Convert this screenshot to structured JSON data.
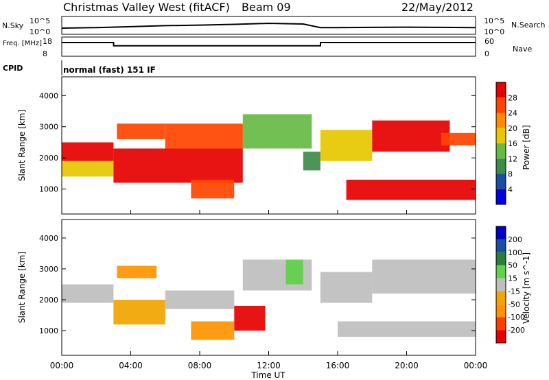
{
  "header": {
    "title": "Christmas Valley West (fitACF)",
    "beam": "Beam 09",
    "date": "22/May/2012",
    "cpid_label": "CPID",
    "cpid_value": "normal (fast) 151 IF"
  },
  "chart_data": [
    {
      "type": "line",
      "panel": "noise",
      "left_label": "N.Sky",
      "right_label": "N.Search",
      "left_ticks": [
        "10^5",
        "10^0"
      ],
      "right_ticks": [
        "10^5",
        "10^0"
      ],
      "yscale": "log",
      "ylim": [
        1,
        100000
      ],
      "x": [
        0,
        2,
        4,
        6,
        8,
        10,
        12,
        14,
        15,
        16,
        18,
        20,
        22,
        24
      ],
      "series": [
        {
          "name": "N.Sky",
          "values": [
            40,
            60,
            120,
            250,
            400,
            700,
            1500,
            900,
            60,
            60,
            70,
            80,
            70,
            60
          ]
        }
      ]
    },
    {
      "type": "line",
      "panel": "frequency",
      "left_label": "Freq. [MHz]",
      "right_label": "Nave",
      "left_ticks": [
        "18",
        "8"
      ],
      "right_ticks": [
        "60",
        "0"
      ],
      "ylim": [
        8,
        18
      ],
      "x": [
        0,
        3,
        3.01,
        15,
        15.01,
        24
      ],
      "series": [
        {
          "name": "Freq.",
          "values": [
            15.5,
            15.5,
            13.5,
            13.5,
            15.5,
            15.5
          ]
        }
      ]
    },
    {
      "type": "heatmap",
      "panel": "power",
      "ylabel": "Slant Range [km]",
      "yticks": [
        "4000",
        "3000",
        "2000",
        "1000"
      ],
      "ylim": [
        200,
        4600
      ],
      "colorbar_label": "Power [dB]",
      "colorbar_ticks": [
        "28",
        "24",
        "20",
        "16",
        "12",
        "8",
        "4"
      ],
      "colors": [
        "#0000e0",
        "#1a4fa0",
        "#3d8c4a",
        "#66bb44",
        "#e6c800",
        "#ff8c00",
        "#ff4400",
        "#e60000"
      ],
      "regions": [
        {
          "t0": 0.0,
          "t1": 3.0,
          "r0": 1900,
          "r1": 2500,
          "level": 7
        },
        {
          "t0": 0.0,
          "t1": 3.0,
          "r0": 1400,
          "r1": 1900,
          "level": 4
        },
        {
          "t0": 3.2,
          "t1": 6.0,
          "r0": 2600,
          "r1": 3100,
          "level": 6
        },
        {
          "t0": 3.0,
          "t1": 10.5,
          "r0": 1200,
          "r1": 2300,
          "level": 7
        },
        {
          "t0": 6.0,
          "t1": 10.5,
          "r0": 2300,
          "r1": 3100,
          "level": 6
        },
        {
          "t0": 7.5,
          "t1": 10.0,
          "r0": 700,
          "r1": 1300,
          "level": 6
        },
        {
          "t0": 10.5,
          "t1": 14.5,
          "r0": 2300,
          "r1": 3400,
          "level": 3
        },
        {
          "t0": 14.0,
          "t1": 15.0,
          "r0": 1600,
          "r1": 2200,
          "level": 2
        },
        {
          "t0": 15.0,
          "t1": 18.0,
          "r0": 1900,
          "r1": 2900,
          "level": 4
        },
        {
          "t0": 18.0,
          "t1": 22.5,
          "r0": 2200,
          "r1": 3200,
          "level": 7
        },
        {
          "t0": 16.5,
          "t1": 24.0,
          "r0": 650,
          "r1": 1300,
          "level": 7
        },
        {
          "t0": 22.0,
          "t1": 24.0,
          "r0": 2400,
          "r1": 2800,
          "level": 6
        }
      ]
    },
    {
      "type": "heatmap",
      "panel": "velocity",
      "ylabel": "Slant Range [km]",
      "yticks": [
        "4000",
        "3000",
        "2000",
        "1000"
      ],
      "ylim": [
        200,
        4600
      ],
      "colorbar_label": "Velocity [m s^-1]",
      "colorbar_ticks": [
        "200",
        "100",
        "50",
        "15",
        "-15",
        "-50",
        "-100",
        "-200"
      ],
      "colors": [
        "#e60000",
        "#ff3c00",
        "#ff9400",
        "#f2a400",
        "#bebebe",
        "#5fd14b",
        "#2a7f3c",
        "#1a4fa0",
        "#0000c8"
      ],
      "xlabel": "Time UT",
      "xticks": [
        "00:00",
        "04:00",
        "08:00",
        "12:00",
        "16:00",
        "20:00",
        "00:00"
      ],
      "xlim": [
        0,
        24
      ],
      "regions": [
        {
          "t0": 0.0,
          "t1": 3.0,
          "r0": 1900,
          "r1": 2500,
          "level": 4
        },
        {
          "t0": 3.0,
          "t1": 6.0,
          "r0": 1200,
          "r1": 2000,
          "level": 3
        },
        {
          "t0": 3.2,
          "t1": 5.5,
          "r0": 2700,
          "r1": 3100,
          "level": 2
        },
        {
          "t0": 6.0,
          "t1": 10.0,
          "r0": 1700,
          "r1": 2300,
          "level": 4
        },
        {
          "t0": 7.5,
          "t1": 10.0,
          "r0": 700,
          "r1": 1300,
          "level": 2
        },
        {
          "t0": 10.0,
          "t1": 11.8,
          "r0": 1000,
          "r1": 1800,
          "level": 0
        },
        {
          "t0": 10.5,
          "t1": 14.5,
          "r0": 2300,
          "r1": 3300,
          "level": 4
        },
        {
          "t0": 13.0,
          "t1": 14.0,
          "r0": 2500,
          "r1": 3300,
          "level": 5
        },
        {
          "t0": 15.0,
          "t1": 18.0,
          "r0": 1900,
          "r1": 2900,
          "level": 4
        },
        {
          "t0": 18.0,
          "t1": 24.0,
          "r0": 2200,
          "r1": 3300,
          "level": 4
        },
        {
          "t0": 16.0,
          "t1": 24.0,
          "r0": 800,
          "r1": 1300,
          "level": 4
        }
      ]
    }
  ]
}
